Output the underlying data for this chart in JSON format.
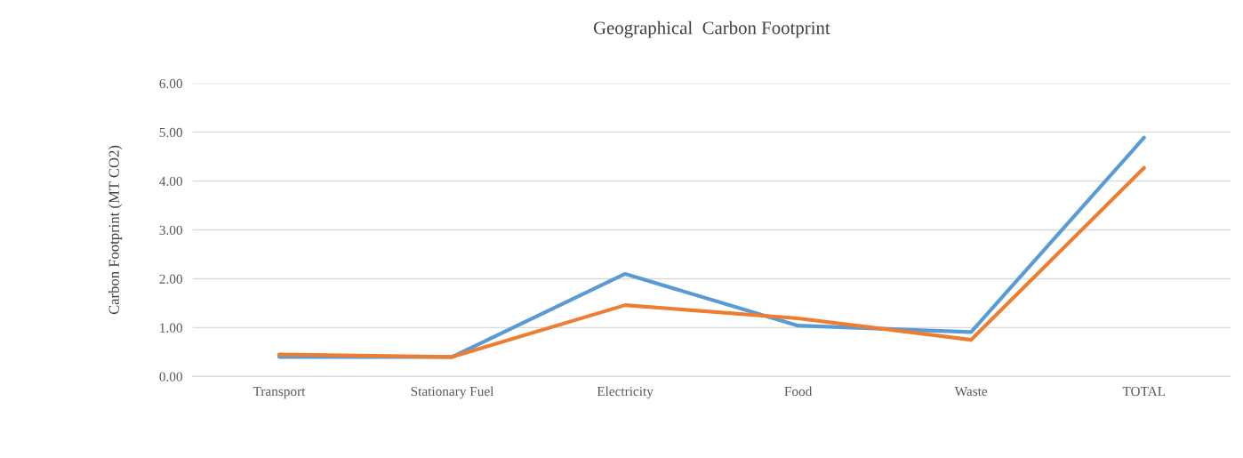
{
  "chart_data": {
    "type": "line",
    "title": "Geographical  Carbon Footprint",
    "ylabel": "Carbon Footprint (MT CO2)",
    "categories": [
      "Transport",
      "Stationary Fuel",
      "Electricity",
      "Food",
      "Waste",
      "TOTAL"
    ],
    "series": [
      {
        "color": "#5b9bd5",
        "values": [
          0.4,
          0.4,
          2.1,
          1.04,
          0.91,
          4.89
        ]
      },
      {
        "color": "#ed7d31",
        "values": [
          0.45,
          0.4,
          1.46,
          1.19,
          0.75,
          4.27
        ]
      }
    ],
    "ylim": [
      0,
      6
    ],
    "yticks": [
      {
        "value": 0,
        "label": "0.00"
      },
      {
        "value": 1,
        "label": "1.00"
      },
      {
        "value": 2,
        "label": "2.00"
      },
      {
        "value": 3,
        "label": "3.00"
      },
      {
        "value": 4,
        "label": "4.00"
      },
      {
        "value": 5,
        "label": "5.00"
      },
      {
        "value": 6,
        "label": "6.00"
      }
    ],
    "grid": "y",
    "legend": false,
    "marker": "none",
    "line_style": "solid"
  }
}
